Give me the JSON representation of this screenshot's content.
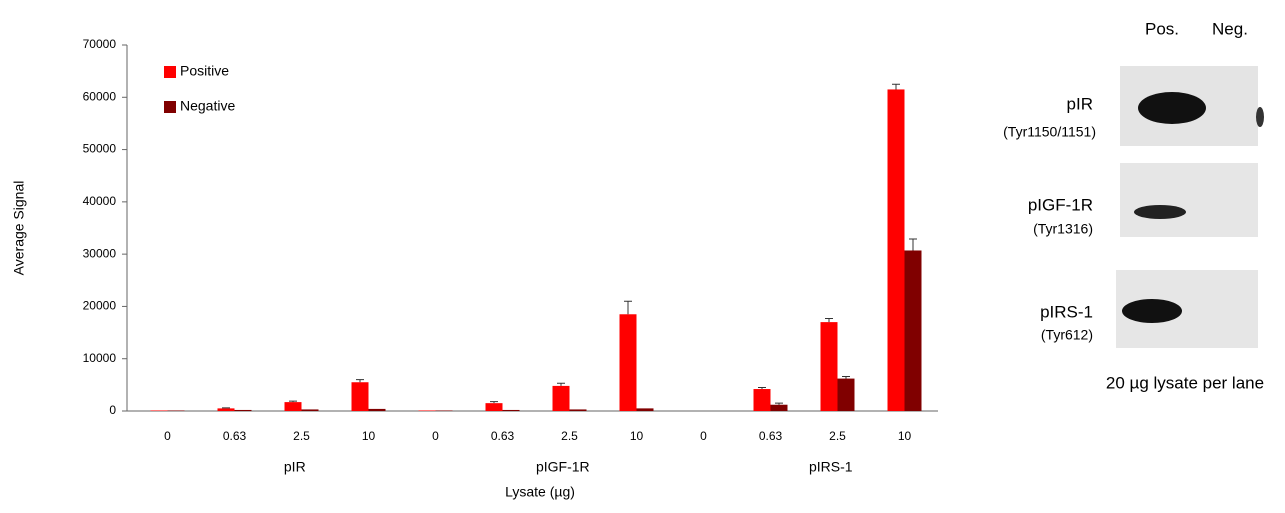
{
  "chart_data": {
    "type": "bar",
    "ylabel": "Average Signal",
    "xlabel": "Lysate (µg)",
    "categories": [
      "0",
      "0.63",
      "2.5",
      "10",
      "0",
      "0.63",
      "2.5",
      "10",
      "0",
      "0.63",
      "2.5",
      "10"
    ],
    "groups": [
      "pIR",
      "pIGF-1R",
      "pIRS-1"
    ],
    "series": [
      {
        "name": "Positive",
        "color": "#ff0000",
        "values": [
          100,
          500,
          1700,
          5500,
          100,
          1500,
          4800,
          18500,
          0,
          4200,
          17000,
          61500
        ],
        "errors": [
          0,
          100,
          200,
          500,
          0,
          300,
          500,
          2500,
          0,
          300,
          700,
          1000
        ]
      },
      {
        "name": "Negative",
        "color": "#800000",
        "values": [
          100,
          200,
          300,
          400,
          100,
          200,
          300,
          500,
          0,
          1200,
          6200,
          30700
        ],
        "errors": [
          0,
          0,
          0,
          0,
          0,
          0,
          0,
          0,
          0,
          300,
          400,
          2200
        ]
      }
    ],
    "ylim": [
      0,
      70000
    ],
    "yticks": [
      0,
      10000,
      20000,
      30000,
      40000,
      50000,
      60000,
      70000
    ],
    "grid": false,
    "legend": "top-left"
  },
  "blot": {
    "lanes": [
      "Pos.",
      "Neg."
    ],
    "rows": [
      {
        "label": "pIR",
        "site": "(Tyr1150/1151)"
      },
      {
        "label": "pIGF-1R",
        "site": "(Tyr1316)"
      },
      {
        "label": "pIRS-1",
        "site": "(Tyr612)"
      }
    ],
    "caption": "20 µg lysate per lane"
  }
}
